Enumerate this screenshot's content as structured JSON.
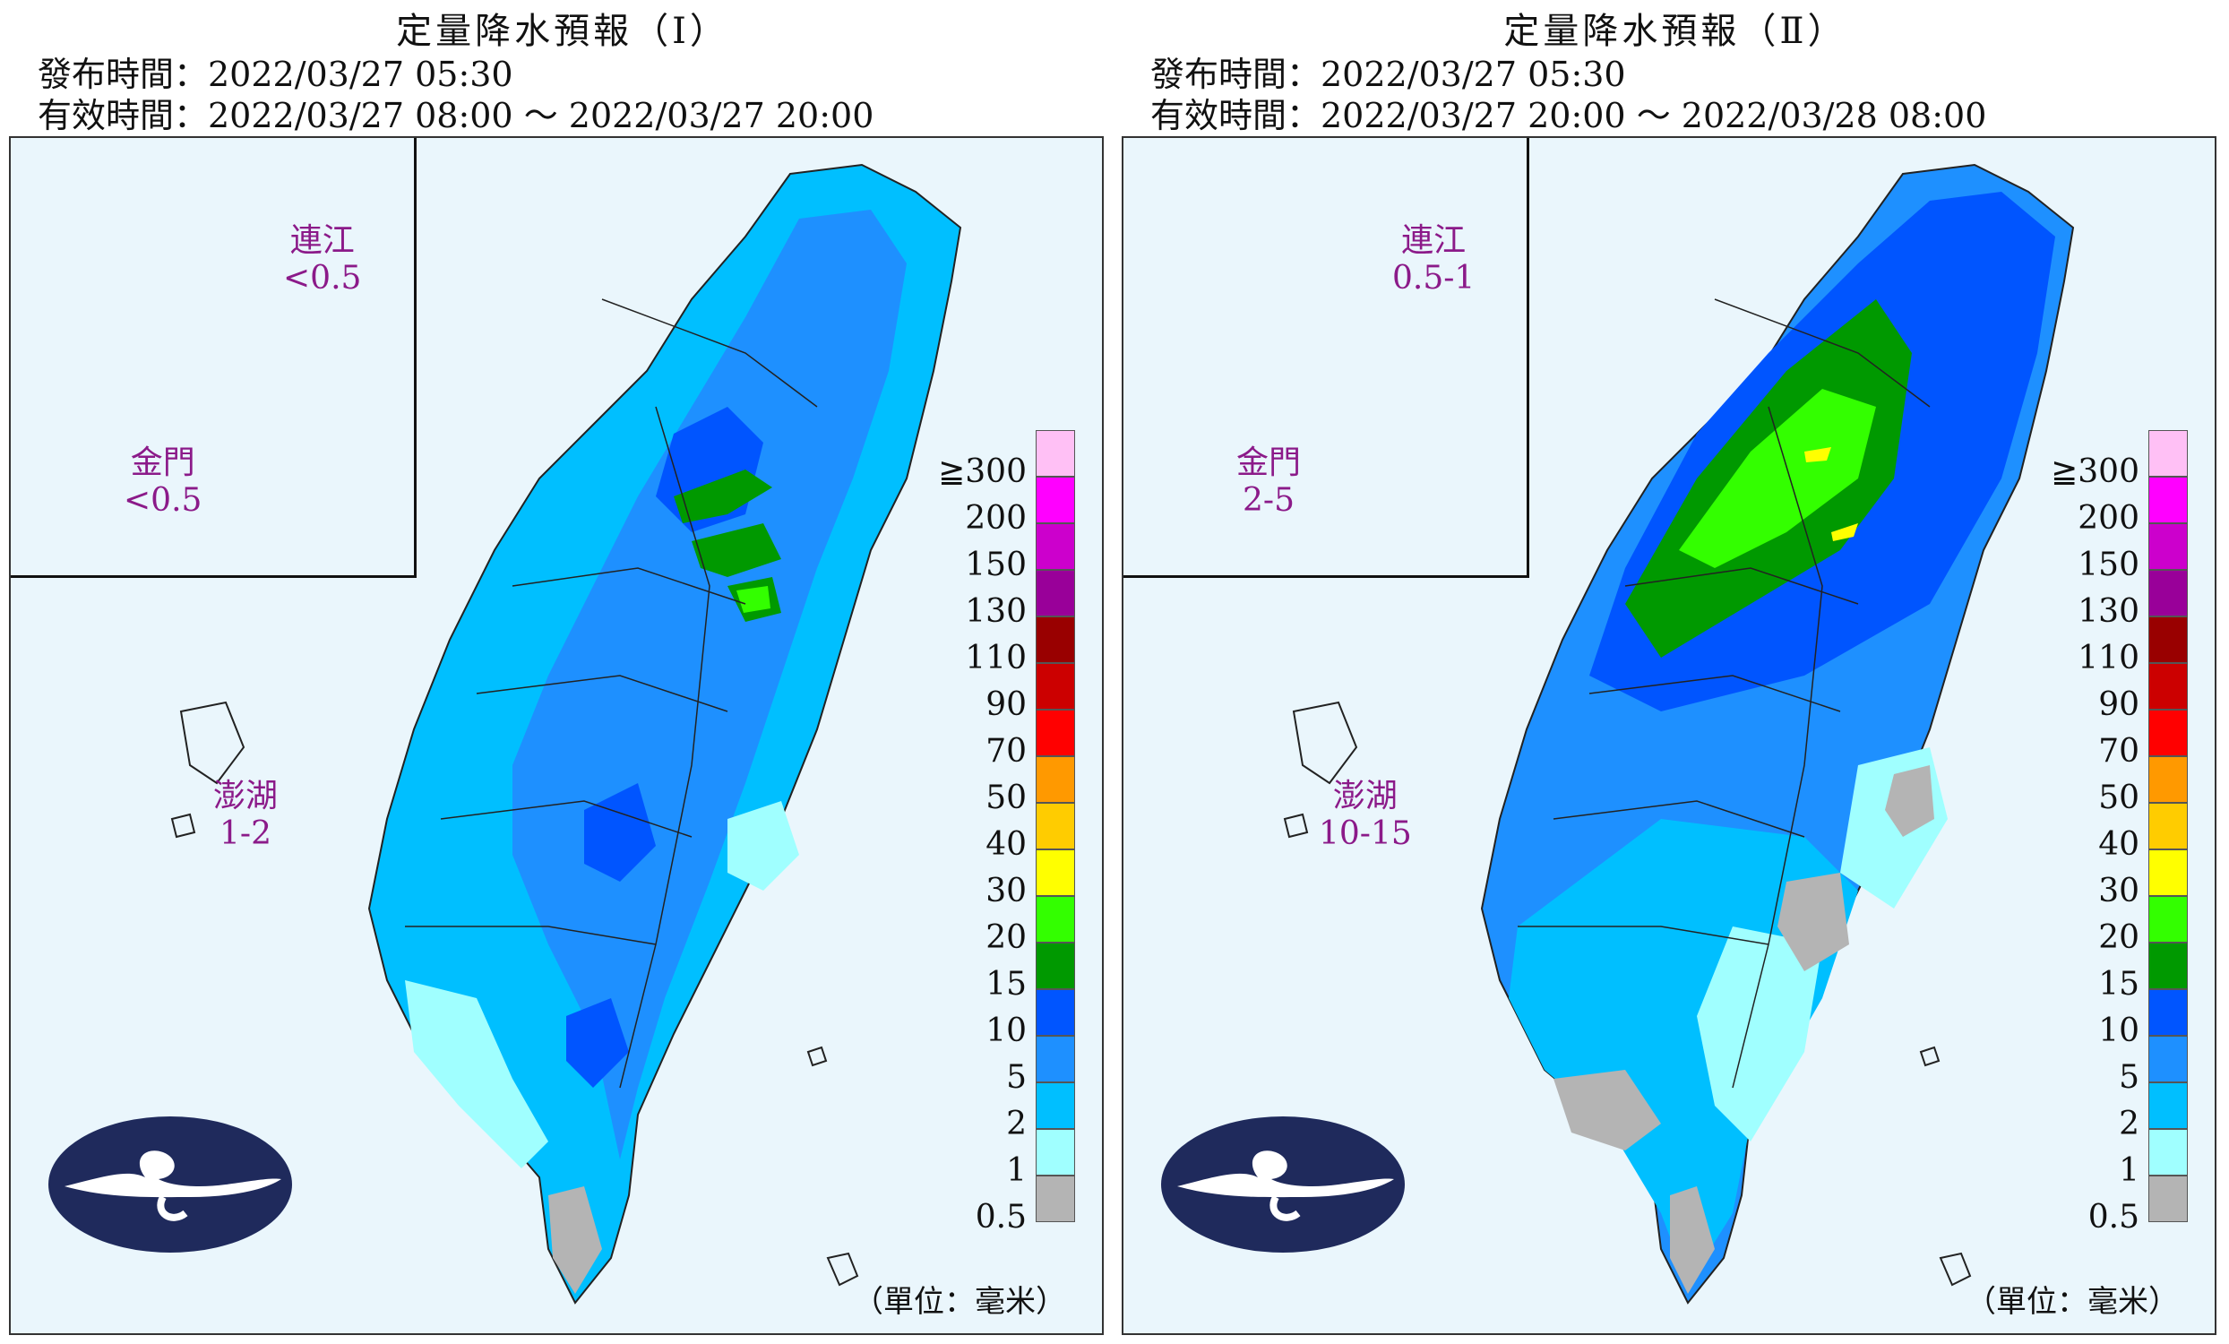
{
  "panels": [
    {
      "title": "定量降水預報（Ⅰ）",
      "issue": "發布時間：2022/03/27 05:30",
      "valid": "有效時間：2022/03/27 08:00 ～ 2022/03/27 20:00",
      "regions": {
        "lienchiang": {
          "name": "連江",
          "value": "<0.5"
        },
        "kinmen": {
          "name": "金門",
          "value": "<0.5"
        },
        "penghu": {
          "name": "澎湖",
          "value": "1-2"
        }
      }
    },
    {
      "title": "定量降水預報（Ⅱ）",
      "issue": "發布時間：2022/03/27 05:30",
      "valid": "有效時間：2022/03/27 20:00 ～ 2022/03/28 08:00",
      "regions": {
        "lienchiang": {
          "name": "連江",
          "value": "0.5-1"
        },
        "kinmen": {
          "name": "金門",
          "value": "2-5"
        },
        "penghu": {
          "name": "澎湖",
          "value": "10-15"
        }
      }
    }
  ],
  "legend": {
    "levels": [
      "≧300",
      "200",
      "150",
      "130",
      "110",
      "90",
      "70",
      "50",
      "40",
      "30",
      "20",
      "15",
      "10",
      "5",
      "2",
      "1",
      "0.5"
    ],
    "colors": [
      "#ffc0f5",
      "#ff00ff",
      "#cc00cc",
      "#990099",
      "#990000",
      "#cc0000",
      "#ff0000",
      "#ff9900",
      "#ffcc00",
      "#ffff00",
      "#33ff00",
      "#009900",
      "#0055ff",
      "#1e90ff",
      "#00bfff",
      "#a0ffff",
      "#b4b4b4"
    ],
    "unit": "（單位：毫米）"
  },
  "icons": {
    "logo": "cwb-cloud-logo-icon"
  }
}
